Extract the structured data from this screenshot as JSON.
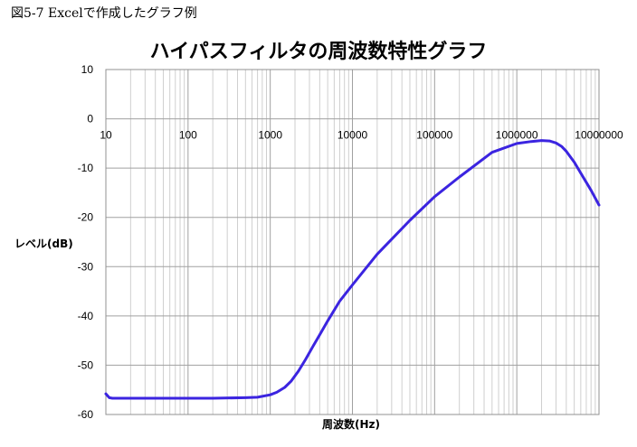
{
  "caption": "図5-7 Excelで作成したグラフ例",
  "chart_data": {
    "type": "line",
    "title": "ハイパスフィルタの周波数特性グラフ",
    "xlabel": "周波数(Hz)",
    "ylabel": "レベル(dB)",
    "x_scale": "log",
    "xlim": [
      10,
      10000000
    ],
    "ylim": [
      -60,
      10
    ],
    "x_ticks": [
      "10",
      "100",
      "1000",
      "10000",
      "100000",
      "1000000",
      "10000000"
    ],
    "y_ticks": [
      "10",
      "0",
      "-10",
      "-20",
      "-30",
      "-40",
      "-50",
      "-60"
    ],
    "grid": true,
    "legend": "none",
    "line_color": "#3b24e0",
    "series": [
      {
        "x": [
          10,
          11,
          12,
          15,
          20,
          50,
          100,
          200,
          500,
          700,
          1000,
          1200,
          1500,
          1800,
          2200,
          2700,
          3300,
          4000,
          5000,
          7000,
          10000,
          20000,
          50000,
          100000,
          200000,
          500000,
          1000000,
          1500000,
          2000000,
          2500000,
          3000000,
          3500000,
          4000000,
          5000000,
          6000000,
          8000000,
          10000000
        ],
        "y": [
          -55.8,
          -56.6,
          -56.7,
          -56.7,
          -56.7,
          -56.7,
          -56.7,
          -56.7,
          -56.6,
          -56.5,
          -56.0,
          -55.5,
          -54.5,
          -53.2,
          -51.2,
          -48.8,
          -46.2,
          -43.8,
          -41.0,
          -37.0,
          -33.7,
          -27.5,
          -20.6,
          -15.8,
          -11.8,
          -6.8,
          -5.0,
          -4.6,
          -4.4,
          -4.5,
          -4.9,
          -5.6,
          -6.6,
          -8.8,
          -11.0,
          -14.5,
          -17.5
        ]
      }
    ]
  }
}
